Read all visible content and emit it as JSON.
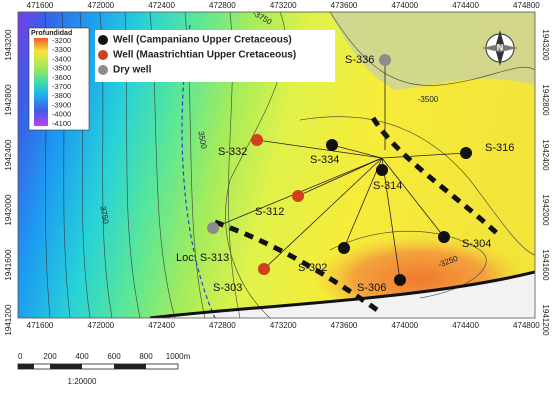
{
  "axes": {
    "top": [
      471600,
      472000,
      472400,
      472800,
      473200,
      473600,
      474000,
      474400,
      474800
    ],
    "bottom": [
      471600,
      472000,
      472400,
      472800,
      473200,
      473600,
      474000,
      474400,
      474800
    ],
    "left": [
      1943200,
      1942800,
      1942400,
      1942000,
      1941600,
      1941200
    ],
    "right": [
      1943200,
      1942800,
      1942400,
      1942000,
      1941600,
      1941200
    ]
  },
  "colorbar": {
    "title": "Profundidad",
    "labels": [
      "-3200",
      "-3300",
      "-3400",
      "-3500",
      "-3600",
      "-3700",
      "-3800",
      "-3900",
      "-4000",
      "-4100"
    ]
  },
  "legend": [
    {
      "name": "Well (Campaniano Upper Cretaceous)",
      "color": "#111111"
    },
    {
      "name": "Well (Maastrichtian Upper Cretaceous)",
      "color": "#d0401c"
    },
    {
      "name": "Dry well",
      "color": "#8c8c8c"
    }
  ],
  "wells": [
    {
      "name": "S-336",
      "color": "#8c8c8c"
    },
    {
      "name": "S-332",
      "color": "#d0401c"
    },
    {
      "name": "S-334",
      "color": "#111111"
    },
    {
      "name": "S-316",
      "color": "#111111"
    },
    {
      "name": "S-314",
      "color": "#111111"
    },
    {
      "name": "S-312",
      "color": "#d0401c"
    },
    {
      "name": "Loc. S-313",
      "color": "#8c8c8c"
    },
    {
      "name": "S-304",
      "color": "#111111"
    },
    {
      "name": "S-302",
      "color": "#111111"
    },
    {
      "name": "S-306",
      "color": "#111111"
    },
    {
      "name": "S-303",
      "color": "#d0401c"
    }
  ],
  "contour_labels": [
    "-3750",
    "-3500",
    "3500",
    "3750",
    "-3250"
  ],
  "scale_bar": {
    "labels": [
      "0",
      "200",
      "400",
      "600",
      "800",
      "1000m"
    ],
    "ratio": "1:20000"
  },
  "north": "N"
}
